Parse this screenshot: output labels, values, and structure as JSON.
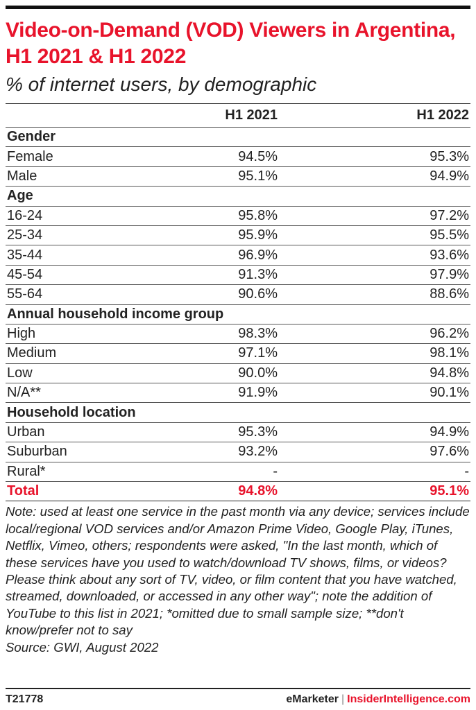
{
  "chart_data": {
    "type": "table",
    "title": "Video-on-Demand (VOD) Viewers in Argentina, H1 2021 & H1 2022",
    "subtitle": "% of internet users, by demographic",
    "columns": [
      "H1 2021",
      "H1 2022"
    ],
    "sections": [
      {
        "name": "Gender",
        "rows": [
          {
            "label": "Female",
            "values": [
              "94.5%",
              "95.3%"
            ]
          },
          {
            "label": "Male",
            "values": [
              "95.1%",
              "94.9%"
            ]
          }
        ]
      },
      {
        "name": "Age",
        "rows": [
          {
            "label": "16-24",
            "values": [
              "95.8%",
              "97.2%"
            ]
          },
          {
            "label": "25-34",
            "values": [
              "95.9%",
              "95.5%"
            ]
          },
          {
            "label": "35-44",
            "values": [
              "96.9%",
              "93.6%"
            ]
          },
          {
            "label": "45-54",
            "values": [
              "91.3%",
              "97.9%"
            ]
          },
          {
            "label": "55-64",
            "values": [
              "90.6%",
              "88.6%"
            ]
          }
        ]
      },
      {
        "name": "Annual household income group",
        "rows": [
          {
            "label": "High",
            "values": [
              "98.3%",
              "96.2%"
            ]
          },
          {
            "label": "Medium",
            "values": [
              "97.1%",
              "98.1%"
            ]
          },
          {
            "label": "Low",
            "values": [
              "90.0%",
              "94.8%"
            ]
          },
          {
            "label": "N/A**",
            "values": [
              "91.9%",
              "90.1%"
            ]
          }
        ]
      },
      {
        "name": "Household location",
        "rows": [
          {
            "label": "Urban",
            "values": [
              "95.3%",
              "94.9%"
            ]
          },
          {
            "label": "Suburban",
            "values": [
              "93.2%",
              "97.6%"
            ]
          },
          {
            "label": "Rural*",
            "values": [
              "-",
              "-"
            ]
          }
        ]
      }
    ],
    "total": {
      "label": "Total",
      "values": [
        "94.8%",
        "95.1%"
      ]
    },
    "note": "Note: used at least one service in the past month via any device; services include local/regional VOD services and/or Amazon Prime Video, Google Play, iTunes, Netflix, Vimeo, others; respondents were asked, \"In the last month, which of these services have you used to watch/download TV shows, films, or videos? Please think about any sort of TV, video, or film content that you have watched, streamed, downloaded, or accessed in any other way\"; note the addition of YouTube to this list in 2021; *omitted due to small sample size; **don't know/prefer not to say",
    "source": "Source: GWI, August 2022"
  },
  "footer": {
    "chart_id": "T21778",
    "brand_left": "eMarketer",
    "separator": "|",
    "brand_right": "InsiderIntelligence.com"
  },
  "colors": {
    "accent": "#e8132b",
    "text": "#222222"
  }
}
